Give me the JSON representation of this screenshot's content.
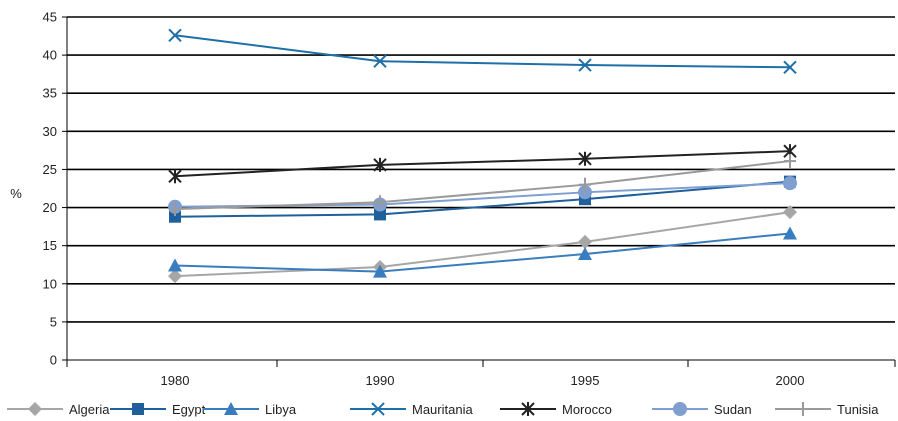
{
  "chart_data": {
    "type": "line",
    "categories": [
      "1980",
      "1990",
      "1995",
      "2000"
    ],
    "ylabel": "%",
    "ylim": [
      0,
      45
    ],
    "yticks": [
      0,
      5,
      10,
      15,
      20,
      25,
      30,
      35,
      40,
      45
    ],
    "grid": true,
    "legend_position": "bottom",
    "series": [
      {
        "name": "Algeria",
        "values": [
          11.0,
          12.2,
          15.5,
          19.4
        ],
        "color": "#a6a6a6",
        "marker": "diamond"
      },
      {
        "name": "Egypt",
        "values": [
          18.8,
          19.1,
          21.1,
          23.4
        ],
        "color": "#1f5f9c",
        "marker": "square"
      },
      {
        "name": "Libya",
        "values": [
          12.4,
          11.6,
          13.9,
          16.6
        ],
        "color": "#3a7dbf",
        "marker": "triangle"
      },
      {
        "name": "Mauritania",
        "values": [
          42.6,
          39.2,
          38.7,
          38.4
        ],
        "color": "#1f6fa8",
        "marker": "x"
      },
      {
        "name": "Morocco",
        "values": [
          24.1,
          25.6,
          26.4,
          27.4
        ],
        "color": "#222222",
        "marker": "star"
      },
      {
        "name": "Sudan",
        "values": [
          20.1,
          20.4,
          22.0,
          23.2
        ],
        "color": "#7e9fcf",
        "marker": "circle"
      },
      {
        "name": "Tunisia",
        "values": [
          19.8,
          20.7,
          23.0,
          26.1
        ],
        "color": "#9a9a9a",
        "marker": "plus"
      }
    ]
  }
}
